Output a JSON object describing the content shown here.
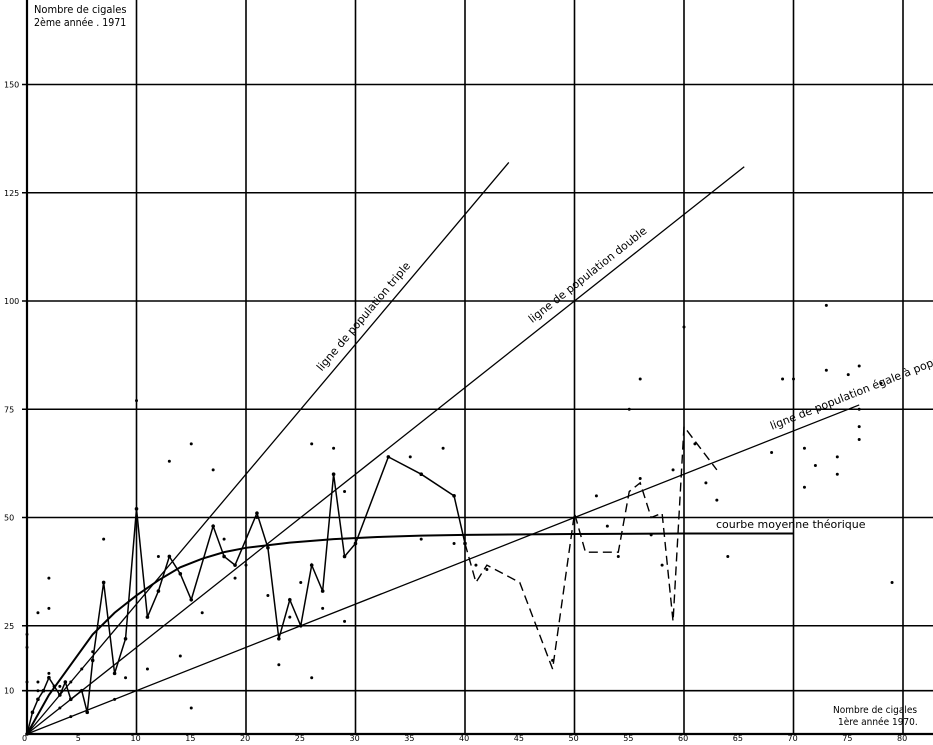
{
  "chart_data": {
    "type": "scatter",
    "title": "",
    "ylabel_line1": "Nombre de cigales",
    "ylabel_line2": "2ème année . 1971",
    "xlabel_line1": "Nombre de cigales",
    "xlabel_line2": "1ère année 1970.",
    "xlim": [
      0,
      82
    ],
    "ylim": [
      0,
      165
    ],
    "x_ticks": [
      5,
      10,
      15,
      20,
      25,
      30,
      35,
      40,
      45,
      50,
      55,
      60,
      65,
      70,
      75,
      80
    ],
    "y_ticks": [
      10,
      25,
      50,
      75,
      100,
      125,
      150
    ],
    "x_gridlines": [
      10,
      20,
      30,
      40,
      50,
      60,
      70,
      80
    ],
    "y_gridlines": [
      10,
      25,
      50,
      75,
      100,
      125,
      150
    ],
    "grid": true,
    "reference_lines": [
      {
        "label": "ligne de population triple",
        "slope": 3,
        "x_end": 44
      },
      {
        "label": "ligne de population double",
        "slope": 2,
        "x_end": 65.5
      },
      {
        "label": "ligne de population égale à population initiale",
        "slope": 1,
        "x_end": 76
      }
    ],
    "theoretical_curve": {
      "label": "courbe moyenne théorique",
      "points": [
        [
          0,
          0
        ],
        [
          2,
          9
        ],
        [
          4,
          16
        ],
        [
          6,
          23
        ],
        [
          8,
          28
        ],
        [
          10,
          32
        ],
        [
          12,
          35.5
        ],
        [
          14,
          38.5
        ],
        [
          16,
          40.5
        ],
        [
          18,
          42
        ],
        [
          20,
          43
        ],
        [
          24,
          44.2
        ],
        [
          28,
          45
        ],
        [
          32,
          45.5
        ],
        [
          36,
          45.8
        ],
        [
          40,
          46
        ],
        [
          50,
          46.2
        ],
        [
          60,
          46.3
        ],
        [
          70,
          46.3
        ]
      ]
    },
    "solid_polyline": [
      [
        0,
        0
      ],
      [
        0.5,
        5
      ],
      [
        1,
        8
      ],
      [
        1.5,
        10
      ],
      [
        2,
        13
      ],
      [
        2.5,
        11
      ],
      [
        3,
        9
      ],
      [
        3.5,
        12
      ],
      [
        4,
        8
      ],
      [
        5,
        10
      ],
      [
        5.5,
        5
      ],
      [
        6,
        17
      ],
      [
        7,
        35
      ],
      [
        8,
        14
      ],
      [
        9,
        22
      ],
      [
        10,
        52
      ],
      [
        11,
        27
      ],
      [
        12,
        33
      ],
      [
        13,
        41
      ],
      [
        14,
        37
      ],
      [
        15,
        31
      ],
      [
        17,
        48
      ],
      [
        18,
        41
      ],
      [
        19,
        39
      ],
      [
        21,
        51
      ],
      [
        22,
        43
      ],
      [
        23,
        22
      ],
      [
        24,
        31
      ],
      [
        25,
        25
      ],
      [
        26,
        39
      ],
      [
        27,
        33
      ],
      [
        28,
        60
      ],
      [
        29,
        41
      ],
      [
        30,
        44
      ],
      [
        33,
        64
      ],
      [
        36,
        60
      ],
      [
        39,
        55
      ],
      [
        40,
        44
      ]
    ],
    "dashed_polyline": [
      [
        40,
        44
      ],
      [
        41,
        35
      ],
      [
        42,
        39
      ],
      [
        45,
        35
      ],
      [
        48,
        15
      ],
      [
        49,
        33
      ],
      [
        50,
        51
      ],
      [
        51,
        42
      ],
      [
        54,
        42
      ],
      [
        55,
        56
      ],
      [
        56,
        58
      ],
      [
        57,
        50
      ],
      [
        58,
        51
      ],
      [
        59,
        26
      ],
      [
        60,
        71
      ],
      [
        63,
        61
      ]
    ],
    "extra_points": [
      [
        0,
        23
      ],
      [
        0,
        12
      ],
      [
        0,
        20
      ],
      [
        1,
        28
      ],
      [
        1,
        10
      ],
      [
        1,
        12
      ],
      [
        2,
        29
      ],
      [
        2,
        36
      ],
      [
        2,
        14
      ],
      [
        3,
        6
      ],
      [
        3,
        11
      ],
      [
        4,
        12
      ],
      [
        4,
        4
      ],
      [
        5,
        15
      ],
      [
        6,
        19
      ],
      [
        7,
        45
      ],
      [
        8,
        8
      ],
      [
        9,
        13
      ],
      [
        10,
        77
      ],
      [
        11,
        15
      ],
      [
        12,
        41
      ],
      [
        13,
        63
      ],
      [
        14,
        18
      ],
      [
        15,
        67
      ],
      [
        15,
        6
      ],
      [
        16,
        28
      ],
      [
        17,
        61
      ],
      [
        18,
        45
      ],
      [
        19,
        36
      ],
      [
        20,
        39
      ],
      [
        21,
        50
      ],
      [
        22,
        32
      ],
      [
        23,
        16
      ],
      [
        24,
        27
      ],
      [
        25,
        35
      ],
      [
        26,
        67
      ],
      [
        26,
        13
      ],
      [
        27,
        29
      ],
      [
        28,
        66
      ],
      [
        29,
        56
      ],
      [
        29,
        26
      ],
      [
        35,
        64
      ],
      [
        36,
        45
      ],
      [
        38,
        66
      ],
      [
        39,
        44
      ],
      [
        41,
        39
      ],
      [
        42,
        38
      ],
      [
        48,
        17
      ],
      [
        52,
        55
      ],
      [
        53,
        48
      ],
      [
        54,
        41
      ],
      [
        55,
        75
      ],
      [
        56,
        59
      ],
      [
        56,
        82
      ],
      [
        57,
        46
      ],
      [
        58,
        39
      ],
      [
        59,
        61
      ],
      [
        60,
        94
      ],
      [
        61,
        67
      ],
      [
        62,
        58
      ],
      [
        63,
        54
      ],
      [
        64,
        41
      ],
      [
        68,
        65
      ],
      [
        69,
        82
      ],
      [
        70,
        82
      ],
      [
        71,
        66
      ],
      [
        71,
        57
      ],
      [
        72,
        62
      ],
      [
        73,
        99
      ],
      [
        73,
        84
      ],
      [
        74,
        60
      ],
      [
        74,
        64
      ],
      [
        75,
        83
      ],
      [
        76,
        85
      ],
      [
        76,
        75
      ],
      [
        76,
        68
      ],
      [
        76,
        71
      ],
      [
        78,
        81
      ],
      [
        79,
        35
      ]
    ]
  }
}
